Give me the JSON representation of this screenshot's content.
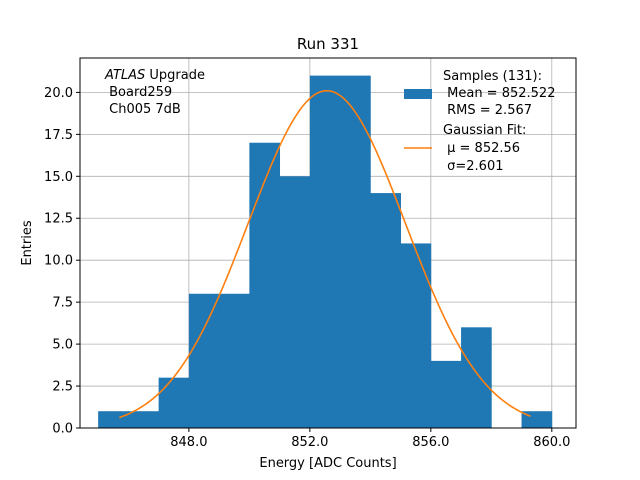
{
  "chart_data": {
    "type": "bar",
    "title": "Run 331",
    "xlabel": "Energy [ADC Counts]",
    "ylabel": "Entries",
    "xlim": [
      844.4,
      860.8
    ],
    "ylim": [
      0,
      22.05
    ],
    "grid": true,
    "x_ticks": [
      848.0,
      852.0,
      856.0,
      860.0
    ],
    "x_tick_labels": [
      "848.0",
      "852.0",
      "856.0",
      "860.0"
    ],
    "y_ticks": [
      0,
      2.5,
      5,
      7.5,
      10,
      12.5,
      15,
      17.5,
      20
    ],
    "y_tick_labels": [
      "0.0",
      "2.5",
      "5.0",
      "7.5",
      "10.0",
      "12.5",
      "15.0",
      "17.5",
      "20.0"
    ],
    "histogram": {
      "name": "Samples",
      "color": "#1f77b4",
      "bin_edges": [
        845.0,
        846.0,
        847.0,
        848.0,
        849.0,
        850.0,
        851.0,
        852.0,
        853.0,
        854.0,
        855.0,
        856.0,
        857.0,
        858.0,
        859.0,
        860.0
      ],
      "counts": [
        1,
        1,
        3,
        8,
        8,
        17,
        15,
        21,
        21,
        14,
        11,
        4,
        6,
        0,
        1
      ]
    },
    "fit": {
      "name": "Gaussian Fit",
      "color": "#ff7f0e",
      "mu": 852.56,
      "sigma": 2.601,
      "amplitude": 20.1,
      "x_range": [
        845.7,
        859.3
      ]
    },
    "legend": {
      "position": "top-right",
      "entries": [
        {
          "lines": [
            "Samples (131):",
            " Mean = 852.522",
            " RMS = 2.567"
          ],
          "marker": "patch",
          "color": "#1f77b4"
        },
        {
          "lines": [
            "Gaussian Fit:",
            " μ = 852.56",
            " σ=2.601"
          ],
          "marker": "line",
          "color": "#ff7f0e"
        }
      ]
    },
    "annotation": {
      "italic": "ATLAS",
      "line1_rest": " Upgrade",
      "line2": " Board259",
      "line3": " Ch005 7dB",
      "position": "top-left"
    }
  }
}
